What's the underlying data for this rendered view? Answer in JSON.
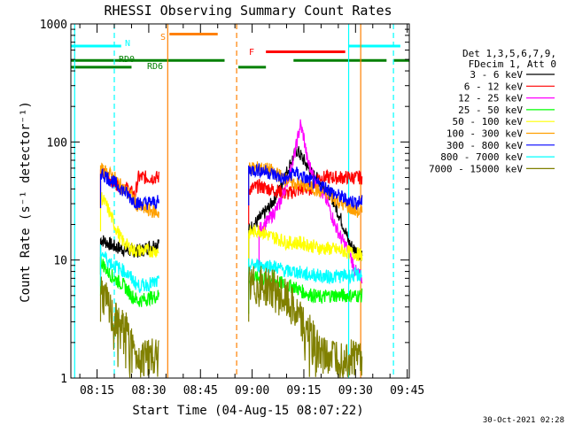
{
  "chart_data": {
    "type": "line",
    "title": "RHESSI Observing Summary Count Rates",
    "xlabel": "Start Time (04-Aug-15 08:07:22)",
    "ylabel": "Count Rate (s⁻¹ detector⁻¹)",
    "yscale": "log",
    "ylim": [
      1,
      1000
    ],
    "xlim_min": [
      7.4,
      105.6
    ],
    "y_ticks": [
      {
        "v": 1,
        "label": "1"
      },
      {
        "v": 10,
        "label": "10"
      },
      {
        "v": 100,
        "label": "100"
      },
      {
        "v": 1000,
        "label": "1000"
      }
    ],
    "x_ticks": [
      {
        "t": 15,
        "label": "08:15"
      },
      {
        "t": 30,
        "label": "08:30"
      },
      {
        "t": 45,
        "label": "08:45"
      },
      {
        "t": 60,
        "label": "09:00"
      },
      {
        "t": 75,
        "label": "09:15"
      },
      {
        "t": 90,
        "label": "09:30"
      },
      {
        "t": 105,
        "label": "09:45"
      }
    ],
    "legend_header": [
      "Det 1,3,5,6,7,9,",
      "FDecim 1, Att 0"
    ],
    "series": [
      {
        "name": "3 - 6 keV",
        "color": "#000000",
        "seg1": [
          [
            16,
            15
          ],
          [
            18,
            14
          ],
          [
            20,
            13
          ],
          [
            24,
            12
          ],
          [
            28,
            12
          ],
          [
            30,
            13
          ],
          [
            33,
            14
          ]
        ],
        "seg2": [
          [
            59,
            18
          ],
          [
            62,
            22
          ],
          [
            65,
            28
          ],
          [
            68,
            40
          ],
          [
            70,
            55
          ],
          [
            72,
            75
          ],
          [
            73,
            85
          ],
          [
            75,
            70
          ],
          [
            77,
            55
          ],
          [
            80,
            45
          ],
          [
            83,
            35
          ],
          [
            85,
            25
          ],
          [
            87,
            18
          ],
          [
            88,
            14
          ],
          [
            90,
            12
          ],
          [
            92,
            11
          ]
        ]
      },
      {
        "name": "6 - 12 keV",
        "color": "#ff0000",
        "seg1": [
          [
            16,
            55
          ],
          [
            18,
            52
          ],
          [
            20,
            45
          ],
          [
            24,
            40
          ],
          [
            26,
            35
          ],
          [
            27,
            50
          ],
          [
            33,
            50
          ]
        ],
        "seg2": [
          [
            59,
            40
          ],
          [
            62,
            42
          ],
          [
            65,
            40
          ],
          [
            68,
            38
          ],
          [
            70,
            36
          ],
          [
            72,
            38
          ],
          [
            75,
            40
          ],
          [
            77,
            40
          ],
          [
            79,
            50
          ],
          [
            92,
            50
          ]
        ]
      },
      {
        "name": "12 - 25 keV",
        "color": "#ff00ff",
        "seg1": [],
        "seg2": [
          [
            62,
            18
          ],
          [
            65,
            22
          ],
          [
            68,
            30
          ],
          [
            70,
            45
          ],
          [
            72,
            70
          ],
          [
            73,
            100
          ],
          [
            74,
            140
          ],
          [
            75,
            110
          ],
          [
            76,
            70
          ],
          [
            78,
            50
          ],
          [
            80,
            38
          ],
          [
            82,
            30
          ],
          [
            84,
            20
          ],
          [
            86,
            15
          ],
          [
            88,
            12
          ],
          [
            90,
            8
          ],
          [
            92,
            7
          ]
        ]
      },
      {
        "name": "25 - 50 keV",
        "color": "#00ff00",
        "seg1": [
          [
            16,
            10
          ],
          [
            18,
            8
          ],
          [
            20,
            7
          ],
          [
            23,
            6
          ],
          [
            25,
            5
          ],
          [
            27,
            4.5
          ],
          [
            33,
            5
          ]
        ],
        "seg2": [
          [
            59,
            7
          ],
          [
            62,
            7
          ],
          [
            65,
            7
          ],
          [
            68,
            6.5
          ],
          [
            70,
            6
          ],
          [
            72,
            6
          ],
          [
            74,
            5.5
          ],
          [
            76,
            5.2
          ],
          [
            78,
            5
          ],
          [
            80,
            4.8
          ],
          [
            82,
            5
          ],
          [
            92,
            5
          ]
        ]
      },
      {
        "name": "50 - 100 keV",
        "color": "#ffff00",
        "seg1": [
          [
            16,
            35
          ],
          [
            18,
            28
          ],
          [
            20,
            20
          ],
          [
            22,
            15
          ],
          [
            24,
            13
          ],
          [
            26,
            12
          ],
          [
            28,
            12
          ],
          [
            30,
            12
          ],
          [
            33,
            12
          ]
        ],
        "seg2": [
          [
            59,
            17
          ],
          [
            62,
            18
          ],
          [
            65,
            16
          ],
          [
            68,
            15
          ],
          [
            70,
            14
          ],
          [
            72,
            14
          ],
          [
            74,
            14
          ],
          [
            76,
            13.5
          ],
          [
            78,
            13
          ],
          [
            80,
            12.5
          ],
          [
            82,
            12.5
          ],
          [
            86,
            12
          ],
          [
            92,
            11
          ]
        ]
      },
      {
        "name": "100 - 300 keV",
        "color": "#ffa000",
        "seg1": [
          [
            16,
            58
          ],
          [
            18,
            55
          ],
          [
            20,
            50
          ],
          [
            22,
            42
          ],
          [
            25,
            35
          ],
          [
            27,
            28
          ],
          [
            33,
            25
          ]
        ],
        "seg2": [
          [
            59,
            60
          ],
          [
            62,
            60
          ],
          [
            65,
            58
          ],
          [
            68,
            52
          ],
          [
            70,
            48
          ],
          [
            72,
            45
          ],
          [
            74,
            43
          ],
          [
            76,
            42
          ],
          [
            78,
            40
          ],
          [
            80,
            38
          ],
          [
            82,
            36
          ],
          [
            84,
            33
          ],
          [
            86,
            30
          ],
          [
            88,
            28
          ],
          [
            90,
            26
          ],
          [
            92,
            25
          ]
        ]
      },
      {
        "name": "300 - 800 keV",
        "color": "#0000ff",
        "seg1": [
          [
            16,
            55
          ],
          [
            18,
            50
          ],
          [
            20,
            45
          ],
          [
            23,
            38
          ],
          [
            25,
            33
          ],
          [
            27,
            30
          ],
          [
            33,
            31
          ]
        ],
        "seg2": [
          [
            59,
            58
          ],
          [
            62,
            58
          ],
          [
            65,
            55
          ],
          [
            68,
            50
          ],
          [
            70,
            48
          ],
          [
            72,
            56
          ],
          [
            74,
            52
          ],
          [
            76,
            48
          ],
          [
            78,
            45
          ],
          [
            80,
            43
          ],
          [
            82,
            40
          ],
          [
            84,
            36
          ],
          [
            86,
            34
          ],
          [
            88,
            32
          ],
          [
            90,
            31
          ],
          [
            92,
            31
          ]
        ]
      },
      {
        "name": "800 - 7000 keV",
        "color": "#00ffff",
        "seg1": [
          [
            16,
            12
          ],
          [
            18,
            10
          ],
          [
            20,
            9
          ],
          [
            23,
            8
          ],
          [
            25,
            7
          ],
          [
            27,
            6
          ],
          [
            33,
            6.5
          ]
        ],
        "seg2": [
          [
            59,
            9
          ],
          [
            62,
            9
          ],
          [
            65,
            9
          ],
          [
            68,
            8.5
          ],
          [
            70,
            8
          ],
          [
            72,
            8
          ],
          [
            74,
            7.8
          ],
          [
            76,
            7.5
          ],
          [
            78,
            7.5
          ],
          [
            80,
            7.3
          ],
          [
            82,
            7.2
          ],
          [
            92,
            7.5
          ]
        ]
      },
      {
        "name": "7000 - 15000 keV",
        "color": "#808000",
        "seg1": [
          [
            16,
            6
          ],
          [
            18,
            4
          ],
          [
            20,
            3
          ],
          [
            23,
            2.5
          ],
          [
            25,
            2
          ],
          [
            27,
            1.5
          ],
          [
            30,
            1.2
          ],
          [
            33,
            1.3
          ]
        ],
        "seg2": [
          [
            59,
            6
          ],
          [
            62,
            6
          ],
          [
            65,
            6
          ],
          [
            68,
            5
          ],
          [
            70,
            4.5
          ],
          [
            72,
            3.8
          ],
          [
            74,
            3
          ],
          [
            76,
            2.5
          ],
          [
            78,
            2
          ],
          [
            80,
            1.7
          ],
          [
            82,
            1.5
          ],
          [
            86,
            1.4
          ],
          [
            92,
            1.3
          ]
        ]
      }
    ],
    "flag_annotations": [
      {
        "label": "N",
        "color": "#00ffff"
      },
      {
        "label": "S",
        "color": "#ff8000"
      },
      {
        "label": "F",
        "color": "#ff0000"
      },
      {
        "label": "RD0",
        "color": "#008000"
      },
      {
        "label": "RD6",
        "color": "#008000"
      }
    ],
    "flag_bars": [
      {
        "color": "#00ffff",
        "y": 650,
        "ranges": [
          [
            7.4,
            22
          ],
          [
            88,
            103
          ]
        ]
      },
      {
        "color": "#ff8000",
        "y": 820,
        "ranges": [
          [
            36,
            50
          ]
        ]
      },
      {
        "color": "#ff0000",
        "y": 580,
        "ranges": [
          [
            64,
            87
          ]
        ]
      },
      {
        "color": "#008000",
        "y": 490,
        "ranges": [
          [
            7.4,
            52
          ],
          [
            72,
            99
          ],
          [
            101,
            105.6
          ]
        ]
      },
      {
        "color": "#008000",
        "y": 430,
        "ranges": [
          [
            7.4,
            25
          ],
          [
            56,
            64
          ]
        ]
      }
    ],
    "vertical_markers": [
      {
        "t": 8.5,
        "color": "#00ffff",
        "style": "solid"
      },
      {
        "t": 20,
        "color": "#00ffff",
        "style": "dashed"
      },
      {
        "t": 35.5,
        "color": "#ff8000",
        "style": "solid"
      },
      {
        "t": 55.5,
        "color": "#ff8000",
        "style": "dashed"
      },
      {
        "t": 88,
        "color": "#00ffff",
        "style": "solid"
      },
      {
        "t": 91.5,
        "color": "#ff8000",
        "style": "solid"
      },
      {
        "t": 101,
        "color": "#00ffff",
        "style": "dashed"
      }
    ]
  },
  "footer": {
    "timestamp": "30-Oct-2021 02:28"
  }
}
